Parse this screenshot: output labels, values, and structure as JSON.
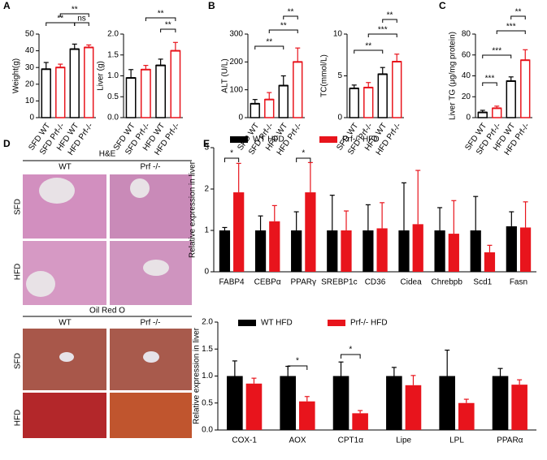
{
  "panel_labels": [
    "A",
    "B",
    "C",
    "D",
    "E"
  ],
  "histology": {
    "he_title": "H&E",
    "oil_title": "Oil Red O",
    "columns": [
      "WT",
      "Prf -/-"
    ],
    "rows": [
      "SFD",
      "HFD"
    ]
  },
  "chart_data": [
    {
      "type": "bar",
      "ylabel": "Weight(g)",
      "categories": [
        "SFD WT",
        "SFD Prf-/-",
        "HFD WT",
        "HFD Prf-/-"
      ],
      "values": [
        29,
        30,
        41,
        42
      ],
      "errors": [
        4,
        2,
        3,
        1.5
      ],
      "colors": [
        "#000000",
        "#e8141c",
        "#000000",
        "#e8141c"
      ],
      "ylim": [
        0,
        50
      ],
      "yticks": [
        0,
        10,
        20,
        30,
        40,
        50
      ],
      "annotations": [
        "**",
        "ns",
        "**"
      ]
    },
    {
      "type": "bar",
      "ylabel": "Liver (g)",
      "categories": [
        "SFD WT",
        "SFD Prf-/-",
        "HFD WT",
        "HFD Prf-/-"
      ],
      "values": [
        0.95,
        1.15,
        1.25,
        1.6
      ],
      "errors": [
        0.2,
        0.1,
        0.15,
        0.2
      ],
      "colors": [
        "#000000",
        "#e8141c",
        "#000000",
        "#e8141c"
      ],
      "ylim": [
        0,
        2
      ],
      "yticks": [
        {
          "value": 0,
          "label": "0.0"
        },
        {
          "value": 0.5,
          "label": "0.5"
        },
        {
          "value": 1,
          "label": "1.0"
        },
        {
          "value": 1.5,
          "label": "1.5"
        },
        {
          "value": 2,
          "label": "2.0"
        }
      ],
      "annotations": [
        "**",
        "**"
      ]
    },
    {
      "type": "bar",
      "ylabel": "ALT (U/L)",
      "categories": [
        "SFD WT",
        "SFD Prf-/-",
        "HFD WT",
        "HFD Prf-/-"
      ],
      "values": [
        50,
        65,
        115,
        200
      ],
      "errors": [
        15,
        25,
        35,
        50
      ],
      "colors": [
        "#000000",
        "#e8141c",
        "#000000",
        "#e8141c"
      ],
      "ylim": [
        0,
        300
      ],
      "yticks": [
        0,
        100,
        200,
        300
      ],
      "annotations": [
        "**",
        "**",
        "**"
      ]
    },
    {
      "type": "bar",
      "ylabel": "TC(mmol/L)",
      "categories": [
        "SFD WT",
        "SFD Prf-/-",
        "HFD WT",
        "HFD Prf-/-"
      ],
      "values": [
        3.5,
        3.6,
        5.2,
        6.7
      ],
      "errors": [
        0.4,
        0.6,
        0.8,
        0.9
      ],
      "colors": [
        "#000000",
        "#e8141c",
        "#000000",
        "#e8141c"
      ],
      "ylim": [
        0,
        10
      ],
      "yticks": [
        0,
        5,
        10
      ],
      "annotations": [
        "**",
        "***",
        "**"
      ]
    },
    {
      "type": "bar",
      "ylabel": "Liver TG (μg/mg protein)",
      "categories": [
        "SFD WT",
        "SFD Prf-/-",
        "HFD WT",
        "HFD Prf-/-"
      ],
      "values": [
        5,
        9,
        35,
        55
      ],
      "errors": [
        2,
        2,
        4,
        10
      ],
      "colors": [
        "#000000",
        "#e8141c",
        "#000000",
        "#e8141c"
      ],
      "ylim": [
        0,
        80
      ],
      "yticks": [
        0,
        20,
        40,
        60,
        80
      ],
      "annotations": [
        "***",
        "***",
        "***",
        "**"
      ]
    },
    {
      "type": "grouped-bar",
      "ylabel": "Relative expression in liver",
      "categories": [
        "FABP4",
        "CEBPα",
        "PPARγ",
        "SREBP1c",
        "CD36",
        "Cidea",
        "Chrebpb",
        "Scd1",
        "Fasn"
      ],
      "series": [
        {
          "name": "WT HFD",
          "color": "#000000",
          "values": [
            1.0,
            1.0,
            1.0,
            1.0,
            1.0,
            1.0,
            1.0,
            1.0,
            1.1
          ],
          "errors": [
            0.07,
            0.35,
            0.45,
            0.85,
            0.62,
            1.15,
            0.55,
            0.82,
            0.35
          ]
        },
        {
          "name": "Prf-/- HFD",
          "color": "#e8141c",
          "values": [
            1.92,
            1.22,
            1.92,
            1.0,
            1.05,
            1.15,
            0.92,
            0.47,
            1.07
          ],
          "errors": [
            0.7,
            0.38,
            0.72,
            0.47,
            0.62,
            1.3,
            0.8,
            0.17,
            0.62
          ]
        }
      ],
      "ylim": [
        0,
        3
      ],
      "yticks": [
        0,
        1,
        2,
        3
      ],
      "legend": "top-left",
      "annotations": [
        "*",
        "*"
      ]
    },
    {
      "type": "grouped-bar",
      "ylabel": "Relative expression in liver",
      "categories": [
        "COX-1",
        "AOX",
        "CPT1α",
        "Lipe",
        "LPL",
        "PPARα"
      ],
      "series": [
        {
          "name": "WT HFD",
          "color": "#000000",
          "values": [
            1.0,
            1.0,
            1.0,
            1.0,
            1.0,
            1.0
          ],
          "errors": [
            0.28,
            0.18,
            0.26,
            0.16,
            0.48,
            0.14
          ]
        },
        {
          "name": "Prf-/- HFD",
          "color": "#e8141c",
          "values": [
            0.86,
            0.53,
            0.31,
            0.83,
            0.5,
            0.84
          ],
          "errors": [
            0.1,
            0.09,
            0.05,
            0.18,
            0.07,
            0.09
          ]
        }
      ],
      "ylim": [
        0,
        2
      ],
      "yticks": [
        {
          "value": 0,
          "label": "0.0"
        },
        {
          "value": 0.5,
          "label": "0.5"
        },
        {
          "value": 1,
          "label": "1.0"
        },
        {
          "value": 1.5,
          "label": "1.5"
        },
        {
          "value": 2,
          "label": "2.0"
        }
      ],
      "legend": "top-left",
      "annotations": [
        "*",
        "*"
      ]
    }
  ]
}
